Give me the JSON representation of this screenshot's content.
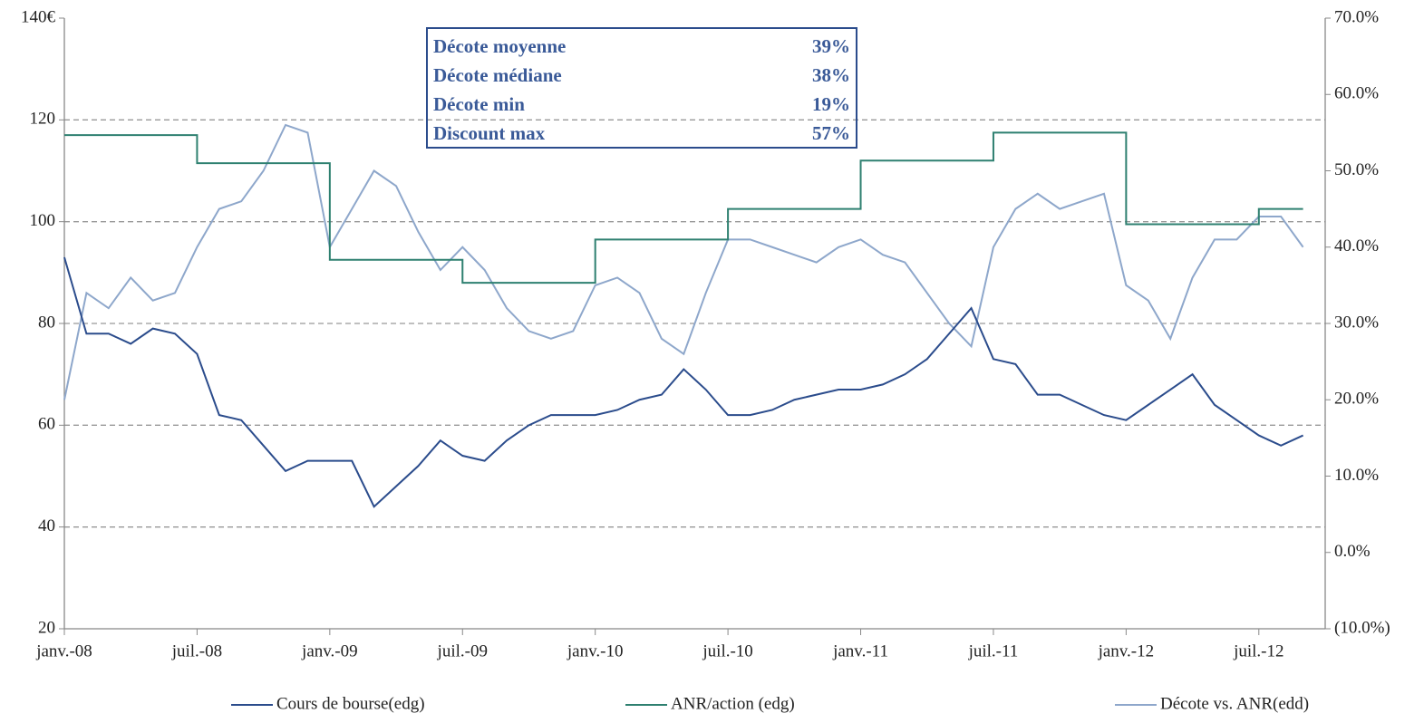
{
  "chart_data": {
    "type": "line",
    "x": [
      "2008-01",
      "2008-02",
      "2008-03",
      "2008-04",
      "2008-05",
      "2008-06",
      "2008-07",
      "2008-08",
      "2008-09",
      "2008-10",
      "2008-11",
      "2008-12",
      "2009-01",
      "2009-02",
      "2009-03",
      "2009-04",
      "2009-05",
      "2009-06",
      "2009-07",
      "2009-08",
      "2009-09",
      "2009-10",
      "2009-11",
      "2009-12",
      "2010-01",
      "2010-02",
      "2010-03",
      "2010-04",
      "2010-05",
      "2010-06",
      "2010-07",
      "2010-08",
      "2010-09",
      "2010-10",
      "2010-11",
      "2010-12",
      "2011-01",
      "2011-02",
      "2011-03",
      "2011-04",
      "2011-05",
      "2011-06",
      "2011-07",
      "2011-08",
      "2011-09",
      "2011-10",
      "2011-11",
      "2011-12",
      "2012-01",
      "2012-02",
      "2012-03",
      "2012-04",
      "2012-05",
      "2012-06",
      "2012-07",
      "2012-08",
      "2012-09"
    ],
    "xlim": [
      "2008-01",
      "2012-10"
    ],
    "xticks": [
      {
        "value": "2008-01",
        "label": "janv.-08"
      },
      {
        "value": "2008-07",
        "label": "juil.-08"
      },
      {
        "value": "2009-01",
        "label": "janv.-09"
      },
      {
        "value": "2009-07",
        "label": "juil.-09"
      },
      {
        "value": "2010-01",
        "label": "janv.-10"
      },
      {
        "value": "2010-07",
        "label": "juil.-10"
      },
      {
        "value": "2011-01",
        "label": "janv.-11"
      },
      {
        "value": "2011-07",
        "label": "juil.-11"
      },
      {
        "value": "2012-01",
        "label": "janv.-12"
      },
      {
        "value": "2012-07",
        "label": "juil.-12"
      }
    ],
    "ylim": [
      20,
      140
    ],
    "yticks": [
      20,
      40,
      60,
      80,
      100,
      120,
      {
        "value": 140,
        "label": "140€"
      }
    ],
    "y2lim": [
      -10,
      70
    ],
    "y2ticks": [
      {
        "value": -10,
        "label": "(10.0%)"
      },
      {
        "value": 0,
        "label": "0.0%"
      },
      {
        "value": 10,
        "label": "10.0%"
      },
      {
        "value": 20,
        "label": "20.0%"
      },
      {
        "value": 30,
        "label": "30.0%"
      },
      {
        "value": 40,
        "label": "40.0%"
      },
      {
        "value": 50,
        "label": "50.0%"
      },
      {
        "value": 60,
        "label": "60.0%"
      },
      {
        "value": 70,
        "label": "70.0%"
      }
    ],
    "grid": true,
    "legend": "bottom",
    "series": [
      {
        "name": "Cours de bourse(edg)",
        "color": "#2b4c8c",
        "values": [
          93,
          78,
          78,
          76,
          79,
          78,
          74,
          62,
          61,
          56,
          51,
          53,
          53,
          53,
          44,
          48,
          52,
          57,
          54,
          53,
          57,
          60,
          62,
          62,
          62,
          63,
          65,
          66,
          71,
          67,
          62,
          62,
          63,
          65,
          66,
          67,
          67,
          68,
          70,
          73,
          78,
          83,
          73,
          72,
          66,
          66,
          64,
          62,
          61,
          64,
          67,
          70,
          64,
          61,
          58,
          56,
          58
        ]
      },
      {
        "name": "ANR/action (edg)",
        "color": "#2e8070",
        "step": true,
        "values": [
          117,
          117,
          117,
          117,
          117,
          117,
          111.5,
          111.5,
          111.5,
          111.5,
          111.5,
          111.5,
          92.5,
          92.5,
          92.5,
          92.5,
          92.5,
          92.5,
          88,
          88,
          88,
          88,
          88,
          88,
          96.5,
          96.5,
          96.5,
          96.5,
          96.5,
          96.5,
          102.5,
          102.5,
          102.5,
          102.5,
          102.5,
          102.5,
          112,
          112,
          112,
          112,
          112,
          112,
          117.5,
          117.5,
          117.5,
          117.5,
          117.5,
          117.5,
          99.5,
          99.5,
          99.5,
          99.5,
          99.5,
          99.5,
          102.5,
          102.5,
          102.5
        ]
      },
      {
        "name": "Décote vs. ANR(edd)",
        "color": "#8ea7cb",
        "axis": "y2",
        "values": [
          20,
          34,
          32,
          36,
          33,
          34,
          40,
          45,
          46,
          50,
          56,
          55,
          40,
          45,
          50,
          48,
          42,
          37,
          40,
          37,
          32,
          29,
          28,
          29,
          35,
          36,
          34,
          28,
          26,
          34,
          41,
          41,
          40,
          39,
          38,
          40,
          41,
          39,
          38,
          34,
          30,
          27,
          40,
          45,
          47,
          45,
          46,
          47,
          35,
          33,
          28,
          36,
          41,
          41,
          44,
          44,
          40
        ]
      }
    ],
    "annotations": [
      [
        "Décote moyenne",
        "39%"
      ],
      [
        "Décote médiane",
        "38%"
      ],
      [
        "Décote min",
        "19%"
      ],
      [
        "Discount max",
        "57%"
      ]
    ]
  }
}
